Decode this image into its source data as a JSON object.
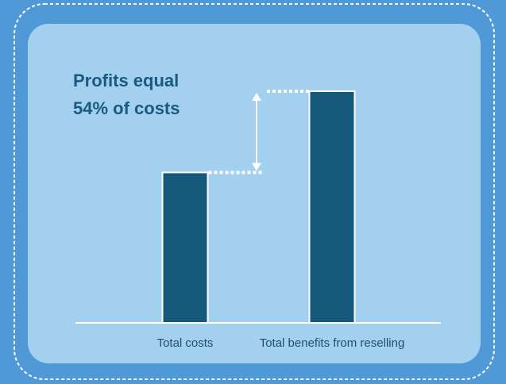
{
  "chart_data": {
    "type": "bar",
    "annotation": [
      "Profits equal",
      "54% of costs"
    ],
    "categories": [
      "Total costs",
      "Total benefits from reselling"
    ],
    "values": [
      100,
      154
    ],
    "color": "#15587a",
    "ylim": [
      0,
      160
    ]
  }
}
